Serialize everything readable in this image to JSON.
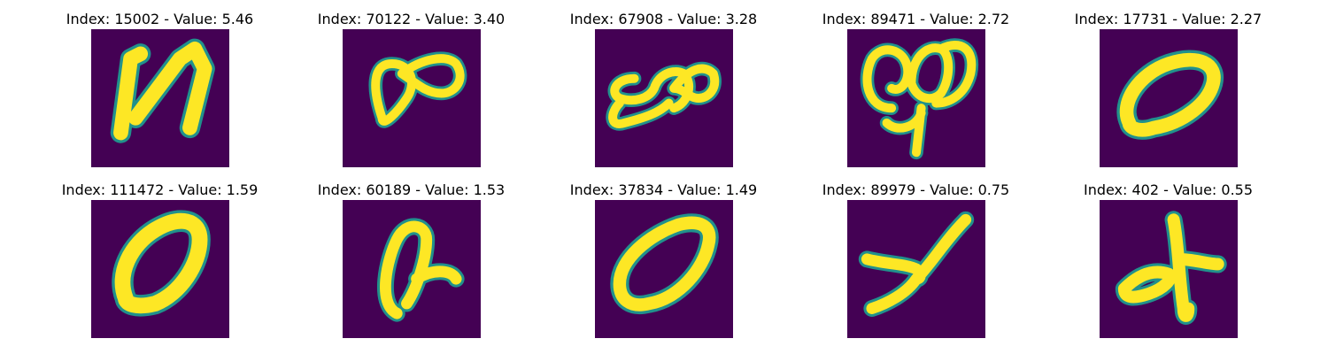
{
  "colors": {
    "background": "#440154",
    "edge": "#21918c",
    "stroke": "#fde725"
  },
  "panels": [
    {
      "title": "Index: 15002 - Value: 5.46",
      "glyph": "digit-n-shape"
    },
    {
      "title": "Index: 70122 - Value: 3.40",
      "glyph": "loop-pair"
    },
    {
      "title": "Index: 67908 - Value: 3.28",
      "glyph": "curl-loop"
    },
    {
      "title": "Index: 89471 - Value: 2.72",
      "glyph": "double-loop-tail"
    },
    {
      "title": "Index: 17731 - Value: 2.27",
      "glyph": "slanted-oval"
    },
    {
      "title": "Index: 111472 - Value: 1.59",
      "glyph": "thick-oval"
    },
    {
      "title": "Index: 60189 - Value: 1.53",
      "glyph": "oval-with-spur"
    },
    {
      "title": "Index: 37834 - Value: 1.49",
      "glyph": "tilted-oval"
    },
    {
      "title": "Index: 89979 - Value: 0.75",
      "glyph": "y-shape"
    },
    {
      "title": "Index: 402 - Value: 0.55",
      "glyph": "cross-shape"
    }
  ]
}
